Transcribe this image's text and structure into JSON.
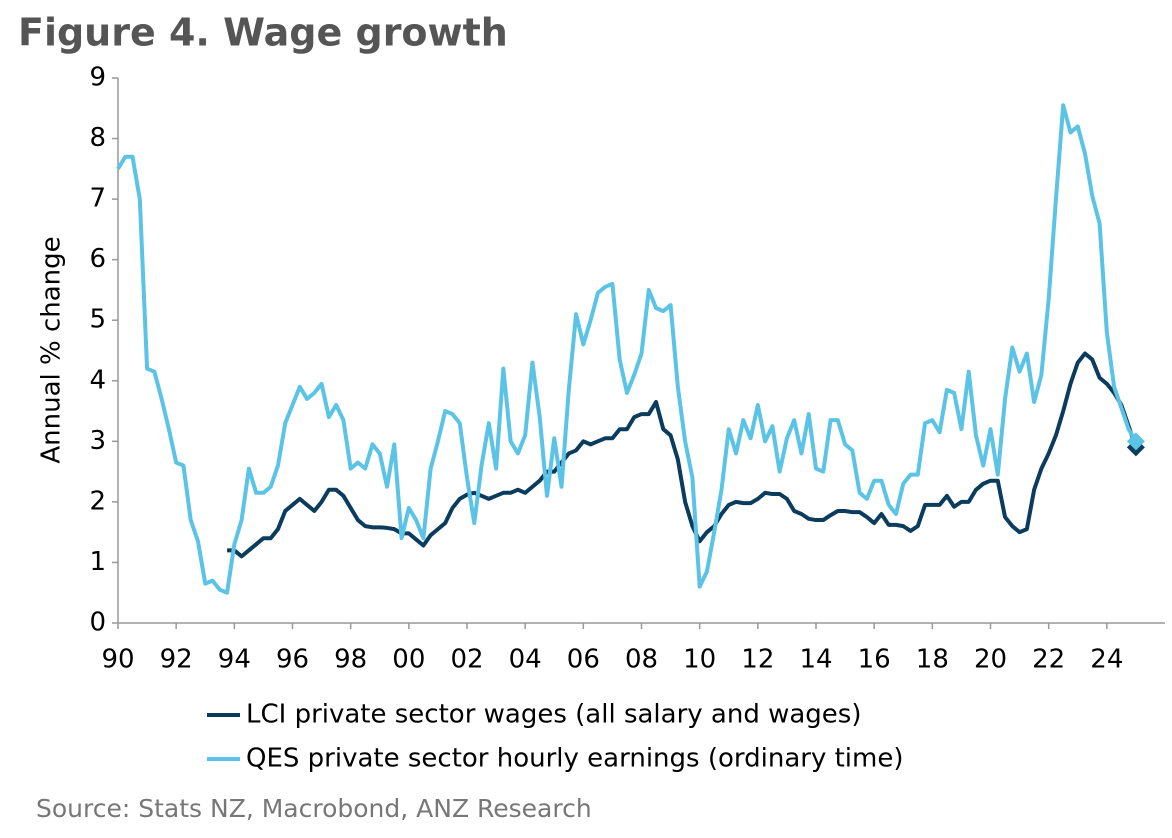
{
  "chart_data": {
    "type": "line",
    "title": "Figure 4. Wage growth",
    "y_label": "Annual % change",
    "source": "Source: Stats NZ, Macrobond, ANZ Research",
    "xlim": [
      1990,
      2026
    ],
    "ylim": [
      0,
      9
    ],
    "yticks": [
      0,
      1,
      2,
      3,
      4,
      5,
      6,
      7,
      8,
      9
    ],
    "xticks": [
      {
        "value": 1990,
        "label": "90"
      },
      {
        "value": 1992,
        "label": "92"
      },
      {
        "value": 1994,
        "label": "94"
      },
      {
        "value": 1996,
        "label": "96"
      },
      {
        "value": 1998,
        "label": "98"
      },
      {
        "value": 2000,
        "label": "00"
      },
      {
        "value": 2002,
        "label": "02"
      },
      {
        "value": 2004,
        "label": "04"
      },
      {
        "value": 2006,
        "label": "06"
      },
      {
        "value": 2008,
        "label": "08"
      },
      {
        "value": 2010,
        "label": "10"
      },
      {
        "value": 2012,
        "label": "12"
      },
      {
        "value": 2014,
        "label": "14"
      },
      {
        "value": 2016,
        "label": "16"
      },
      {
        "value": 2018,
        "label": "18"
      },
      {
        "value": 2020,
        "label": "20"
      },
      {
        "value": 2022,
        "label": "22"
      },
      {
        "value": 2024,
        "label": "24"
      }
    ],
    "x": [
      1990,
      1990.25,
      1990.5,
      1990.75,
      1991,
      1991.25,
      1991.5,
      1991.75,
      1992,
      1992.25,
      1992.5,
      1992.75,
      1993,
      1993.25,
      1993.5,
      1993.75,
      1994,
      1994.25,
      1994.5,
      1994.75,
      1995,
      1995.25,
      1995.5,
      1995.75,
      1996,
      1996.25,
      1996.5,
      1996.75,
      1997,
      1997.25,
      1997.5,
      1997.75,
      1998,
      1998.25,
      1998.5,
      1998.75,
      1999,
      1999.25,
      1999.5,
      1999.75,
      2000,
      2000.25,
      2000.5,
      2000.75,
      2001,
      2001.25,
      2001.5,
      2001.75,
      2002,
      2002.25,
      2002.5,
      2002.75,
      2003,
      2003.25,
      2003.5,
      2003.75,
      2004,
      2004.25,
      2004.5,
      2004.75,
      2005,
      2005.25,
      2005.5,
      2005.75,
      2006,
      2006.25,
      2006.5,
      2006.75,
      2007,
      2007.25,
      2007.5,
      2007.75,
      2008,
      2008.25,
      2008.5,
      2008.75,
      2009,
      2009.25,
      2009.5,
      2009.75,
      2010,
      2010.25,
      2010.5,
      2010.75,
      2011,
      2011.25,
      2011.5,
      2011.75,
      2012,
      2012.25,
      2012.5,
      2012.75,
      2013,
      2013.25,
      2013.5,
      2013.75,
      2014,
      2014.25,
      2014.5,
      2014.75,
      2015,
      2015.25,
      2015.5,
      2015.75,
      2016,
      2016.25,
      2016.5,
      2016.75,
      2017,
      2017.25,
      2017.5,
      2017.75,
      2018,
      2018.25,
      2018.5,
      2018.75,
      2019,
      2019.25,
      2019.5,
      2019.75,
      2020,
      2020.25,
      2020.5,
      2020.75,
      2021,
      2021.25,
      2021.5,
      2021.75,
      2022,
      2022.25,
      2022.5,
      2022.75,
      2023,
      2023.25,
      2023.5,
      2023.75,
      2024,
      2024.25,
      2024.5,
      2024.75,
      2025
    ],
    "series": [
      {
        "name": "LCI private sector wages (all salary and wages)",
        "color": "#0b3c5d",
        "values": [
          null,
          null,
          null,
          null,
          null,
          null,
          null,
          null,
          null,
          null,
          null,
          null,
          null,
          null,
          null,
          1.2,
          1.2,
          1.1,
          1.2,
          1.3,
          1.4,
          1.4,
          1.55,
          1.85,
          1.95,
          2.05,
          1.95,
          1.85,
          2.0,
          2.2,
          2.2,
          2.1,
          1.9,
          1.7,
          1.6,
          1.58,
          1.58,
          1.57,
          1.55,
          1.48,
          1.48,
          1.38,
          1.28,
          1.45,
          1.55,
          1.65,
          1.9,
          2.05,
          2.12,
          2.15,
          2.1,
          2.05,
          2.1,
          2.15,
          2.15,
          2.2,
          2.15,
          2.25,
          2.35,
          2.5,
          2.5,
          2.65,
          2.8,
          2.85,
          3.0,
          2.95,
          3.0,
          3.05,
          3.05,
          3.2,
          3.2,
          3.4,
          3.45,
          3.45,
          3.65,
          3.2,
          3.1,
          2.7,
          2.0,
          1.6,
          1.35,
          1.5,
          1.6,
          1.8,
          1.95,
          2.0,
          1.98,
          1.98,
          2.05,
          2.15,
          2.13,
          2.13,
          2.05,
          1.85,
          1.8,
          1.72,
          1.7,
          1.7,
          1.78,
          1.85,
          1.85,
          1.83,
          1.83,
          1.75,
          1.65,
          1.8,
          1.62,
          1.62,
          1.6,
          1.52,
          1.6,
          1.95,
          1.95,
          1.95,
          2.1,
          1.92,
          2.0,
          2.0,
          2.2,
          2.3,
          2.35,
          2.35,
          1.75,
          1.6,
          1.5,
          1.55,
          2.2,
          2.55,
          2.8,
          3.1,
          3.5,
          3.95,
          4.3,
          4.45,
          4.35,
          4.05,
          3.95,
          3.8,
          3.6,
          3.25,
          2.9
        ]
      },
      {
        "name": "QES private sector hourly earnings (ordinary time)",
        "color": "#5bc3e5",
        "values": [
          7.5,
          7.7,
          7.7,
          7.0,
          4.2,
          4.15,
          3.7,
          3.2,
          2.65,
          2.6,
          1.7,
          1.35,
          0.65,
          0.7,
          0.55,
          0.5,
          1.3,
          1.7,
          2.55,
          2.15,
          2.15,
          2.25,
          2.6,
          3.3,
          3.6,
          3.9,
          3.7,
          3.8,
          3.95,
          3.4,
          3.6,
          3.35,
          2.55,
          2.65,
          2.55,
          2.95,
          2.8,
          2.25,
          2.95,
          1.4,
          1.9,
          1.7,
          1.4,
          2.55,
          3.0,
          3.5,
          3.45,
          3.3,
          2.4,
          1.65,
          2.6,
          3.3,
          2.55,
          4.2,
          3.0,
          2.8,
          3.1,
          4.3,
          3.4,
          2.1,
          3.05,
          2.25,
          3.85,
          5.1,
          4.6,
          5.0,
          5.45,
          5.55,
          5.6,
          4.35,
          3.8,
          4.1,
          4.45,
          5.5,
          5.2,
          5.15,
          5.25,
          3.9,
          3.0,
          2.4,
          0.6,
          0.85,
          1.5,
          2.2,
          3.2,
          2.8,
          3.35,
          3.05,
          3.6,
          3.0,
          3.25,
          2.5,
          3.05,
          3.35,
          2.8,
          3.45,
          2.55,
          2.5,
          3.35,
          3.35,
          2.95,
          2.85,
          2.15,
          2.05,
          2.35,
          2.35,
          1.95,
          1.8,
          2.3,
          2.45,
          2.45,
          3.3,
          3.35,
          3.15,
          3.85,
          3.8,
          3.2,
          4.15,
          3.1,
          2.6,
          3.2,
          2.45,
          3.7,
          4.55,
          4.15,
          4.45,
          3.65,
          4.1,
          5.35,
          7.0,
          8.55,
          8.1,
          8.2,
          7.75,
          7.05,
          6.6,
          4.8,
          3.9,
          3.55,
          3.2,
          3.0
        ]
      }
    ]
  }
}
